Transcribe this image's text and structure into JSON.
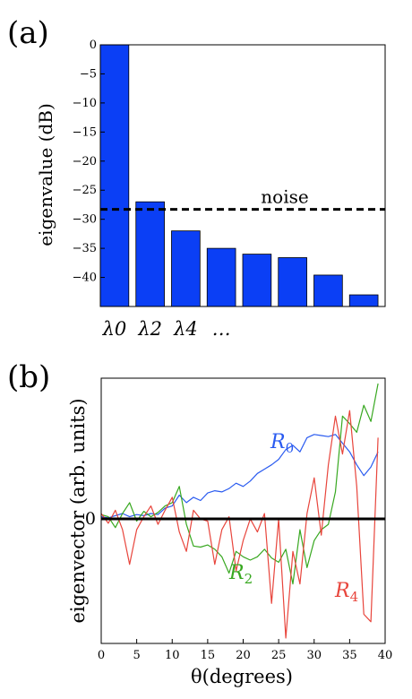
{
  "chart_data": [
    {
      "panel_label": "(a)",
      "type": "bar",
      "ylabel": "eigenvalue (dB)",
      "ylim": [
        -45,
        0
      ],
      "yticks": [
        0,
        -5,
        -10,
        -15,
        -20,
        -25,
        -30,
        -35,
        -40
      ],
      "ytick_labels": [
        "0",
        "−5",
        "−10",
        "−15",
        "−20",
        "−25",
        "−30",
        "−35",
        "−40"
      ],
      "values": [
        0,
        -27,
        -32,
        -35,
        -36,
        -36.6,
        -39.6,
        -43
      ],
      "bar_color": "#0b3ff5",
      "noise_level": -28.3,
      "noise_label": "noise",
      "xtick_labels": [
        "λ0",
        "λ2",
        "λ4",
        "…"
      ],
      "xtick_bar_index": [
        0,
        1,
        2,
        3
      ]
    },
    {
      "panel_label": "(b)",
      "type": "line",
      "xlabel": "θ(degrees)",
      "ylabel": "eigenvector (arb. units)",
      "xlim": [
        0,
        40
      ],
      "xticks": [
        0,
        5,
        10,
        15,
        20,
        25,
        30,
        35,
        40
      ],
      "ylim": [
        -1.15,
        1.3
      ],
      "yticks": [
        0
      ],
      "series": [
        {
          "name": "R0",
          "color": "#2a5bf0",
          "x": [
            0,
            1,
            2,
            3,
            4,
            5,
            6,
            7,
            8,
            9,
            10,
            11,
            12,
            13,
            14,
            15,
            16,
            17,
            18,
            19,
            20,
            21,
            22,
            23,
            24,
            25,
            26,
            27,
            28,
            29,
            30,
            31,
            32,
            33,
            34,
            35,
            36,
            37,
            38,
            39
          ],
          "y": [
            0.02,
            0.01,
            0.03,
            0.05,
            0.02,
            0.04,
            0.03,
            0.05,
            0.04,
            0.1,
            0.12,
            0.22,
            0.15,
            0.2,
            0.17,
            0.24,
            0.26,
            0.25,
            0.28,
            0.33,
            0.3,
            0.35,
            0.42,
            0.46,
            0.5,
            0.55,
            0.64,
            0.68,
            0.62,
            0.75,
            0.78,
            0.77,
            0.76,
            0.78,
            0.7,
            0.62,
            0.5,
            0.4,
            0.48,
            0.62
          ]
        },
        {
          "name": "R2",
          "color": "#38a820",
          "x": [
            0,
            1,
            2,
            3,
            4,
            5,
            6,
            7,
            8,
            9,
            10,
            11,
            12,
            13,
            14,
            15,
            16,
            17,
            18,
            19,
            20,
            21,
            22,
            23,
            24,
            25,
            26,
            27,
            28,
            29,
            30,
            31,
            32,
            33,
            34,
            35,
            36,
            37,
            38,
            39
          ],
          "y": [
            0.04,
            0.02,
            -0.08,
            0.05,
            0.15,
            -0.02,
            0.07,
            0.02,
            0.06,
            0.12,
            0.15,
            0.3,
            -0.05,
            -0.25,
            -0.26,
            -0.24,
            -0.28,
            -0.35,
            -0.5,
            -0.3,
            -0.35,
            -0.38,
            -0.35,
            -0.28,
            -0.36,
            -0.4,
            -0.28,
            -0.6,
            -0.1,
            -0.45,
            -0.2,
            -0.1,
            -0.05,
            0.25,
            0.95,
            0.88,
            0.8,
            1.05,
            0.9,
            1.25
          ]
        },
        {
          "name": "R4",
          "color": "#e8453c",
          "x": [
            0,
            1,
            2,
            3,
            4,
            5,
            6,
            7,
            8,
            9,
            10,
            11,
            12,
            13,
            14,
            15,
            16,
            17,
            18,
            19,
            20,
            21,
            22,
            23,
            24,
            25,
            26,
            27,
            28,
            29,
            30,
            31,
            32,
            33,
            34,
            35,
            36,
            37,
            38,
            39
          ],
          "y": [
            0.05,
            -0.04,
            0.08,
            -0.1,
            -0.42,
            -0.1,
            0.02,
            0.12,
            -0.05,
            0.08,
            0.2,
            -0.12,
            -0.3,
            0.08,
            0.0,
            -0.02,
            -0.42,
            -0.1,
            0.02,
            -0.48,
            -0.2,
            0.0,
            -0.12,
            0.05,
            -0.78,
            0.0,
            -1.1,
            -0.3,
            -0.6,
            0.05,
            0.38,
            -0.15,
            0.5,
            0.95,
            0.6,
            1.0,
            0.3,
            -0.88,
            -0.95,
            0.75
          ]
        }
      ],
      "zero_line": true
    }
  ]
}
